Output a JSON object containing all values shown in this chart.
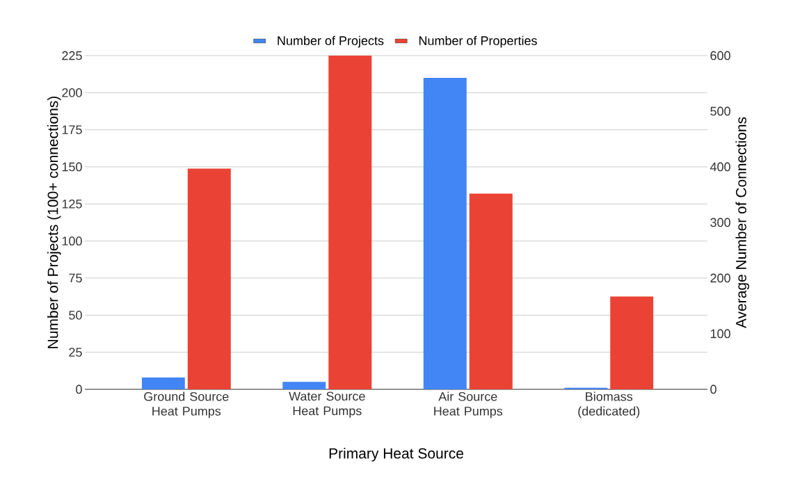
{
  "chart_data": {
    "type": "bar",
    "xlabel": "Primary Heat Source",
    "ylabel": "Number of Projects (100+ connections)",
    "y2label": "Average Number of Connections",
    "categories": [
      "Ground Source Heat Pumps",
      "Water Source Heat Pumps",
      "Air Source Heat Pumps",
      "Biomass (dedicated)"
    ],
    "series": [
      {
        "name": "Number of Projects",
        "color": "#4285f4",
        "values": [
          8,
          5,
          210,
          1
        ]
      },
      {
        "name": "Number of Properties",
        "color": "#ea4335",
        "values": [
          397,
          600,
          352,
          167
        ],
        "axis": "y2"
      }
    ],
    "ylim": [
      0,
      225
    ],
    "yticks": [
      0,
      25,
      50,
      75,
      100,
      125,
      150,
      175,
      200,
      225
    ],
    "y2lim": [
      0,
      600
    ],
    "y2ticks": [
      0,
      100,
      200,
      300,
      400,
      500,
      600
    ],
    "grid": "y",
    "legend": "top"
  }
}
